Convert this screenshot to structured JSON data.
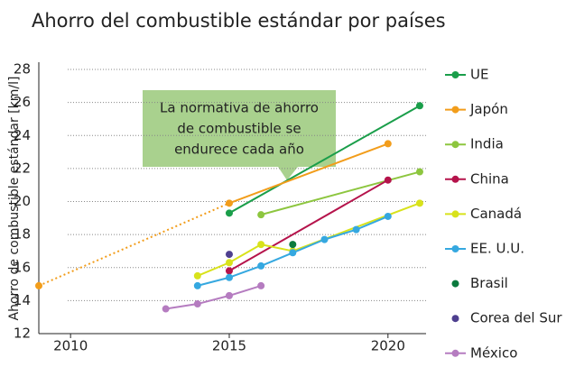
{
  "chart_data": {
    "type": "line",
    "title": "Ahorro del combustible estándar por países",
    "y_label": "Ahorro de combustible estándar [km/l]",
    "xlim": [
      2009,
      2021.2
    ],
    "xticks": [
      2010,
      2015,
      2020
    ],
    "ylim": [
      12,
      28
    ],
    "yticks": [
      12,
      14,
      16,
      18,
      20,
      22,
      24,
      26,
      28
    ],
    "grid": true,
    "legend": "right",
    "annotation": {
      "lines": [
        "La normativa de ahorro",
        "de combustible se",
        "endurece cada año"
      ],
      "color": "#a9d18e"
    },
    "series": [
      {
        "name": "UE",
        "color": "#1a9e4a",
        "x": [
          2015,
          2021
        ],
        "values": [
          19.3,
          25.8
        ]
      },
      {
        "name": "Japón",
        "color": "#f29d1b",
        "x": [
          2009,
          2015,
          2020
        ],
        "values": [
          14.9,
          19.9,
          23.5
        ],
        "dashed_segments": [
          0
        ]
      },
      {
        "name": "India",
        "color": "#8dc63f",
        "x": [
          2016,
          2021
        ],
        "values": [
          19.2,
          21.8
        ]
      },
      {
        "name": "China",
        "color": "#b5134b",
        "x": [
          2015,
          2020
        ],
        "values": [
          15.8,
          21.3
        ]
      },
      {
        "name": "Canadá",
        "color": "#d8e21b",
        "x": [
          2014,
          2015,
          2016,
          2017,
          2021
        ],
        "values": [
          15.5,
          16.3,
          17.4,
          17.0,
          19.9
        ]
      },
      {
        "name": "EE. U.U.",
        "color": "#35a8e0",
        "x": [
          2014,
          2015,
          2016,
          2017,
          2018,
          2019,
          2020
        ],
        "values": [
          14.9,
          15.4,
          16.1,
          16.9,
          17.7,
          18.3,
          19.1
        ]
      },
      {
        "name": "Brasil",
        "color": "#0b7a3e",
        "x": [
          2017
        ],
        "values": [
          17.4
        ],
        "markers_only": true
      },
      {
        "name": "Corea del Sur",
        "color": "#4e3f8f",
        "x": [
          2015
        ],
        "values": [
          16.8
        ],
        "markers_only": true
      },
      {
        "name": "México",
        "color": "#b57cc0",
        "x": [
          2013,
          2014,
          2015,
          2016
        ],
        "values": [
          13.5,
          13.8,
          14.3,
          14.9
        ]
      }
    ]
  }
}
